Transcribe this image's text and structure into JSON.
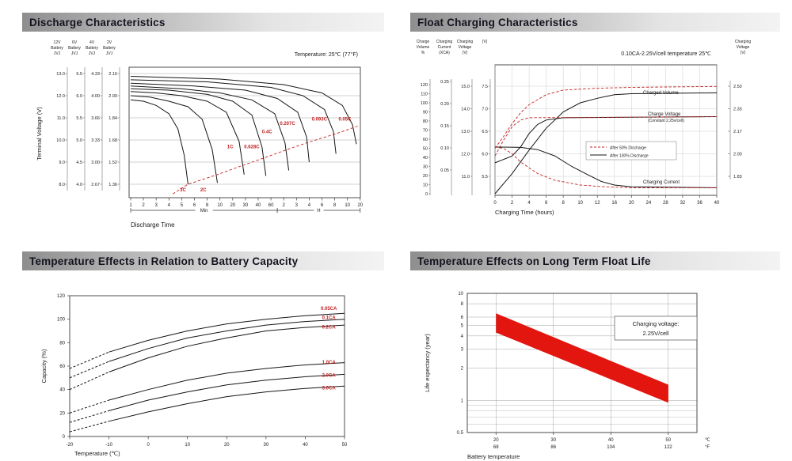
{
  "panels": [
    {
      "id": "discharge",
      "title": "Discharge Characteristics"
    },
    {
      "id": "float_charging",
      "title": "Float Charging Characteristics"
    },
    {
      "id": "temp_capacity",
      "title": "Temperature Effects in Relation to Battery Capacity"
    },
    {
      "id": "float_life",
      "title": "Temperature Effects on Long Term Float Life"
    }
  ],
  "colors": {
    "accent_red": "#c32222",
    "band_red": "#e3150f",
    "curve_black": "#151515",
    "grid": "#9a9a9a"
  },
  "chart_data": [
    {
      "id": "discharge",
      "type": "line",
      "title": "Discharge Characteristics",
      "note": "Temperature: 25℃ (77°F)",
      "xlabel": "Discharge Time",
      "ylabel": "Terminal Voltage (V)",
      "x_tick_labels": [
        "1",
        "2",
        "3",
        "4",
        "5",
        "6",
        "8",
        "10",
        "20",
        "30",
        "40",
        "60",
        "2",
        "3",
        "4",
        "6",
        "8",
        "10",
        "20"
      ],
      "x_unit_spans": [
        {
          "label": "Min",
          "from": 0,
          "to": 11
        },
        {
          "label": "H",
          "from": 12,
          "to": 18
        }
      ],
      "y_axes": [
        {
          "header": "12V Battery JVJ",
          "ticks": [
            "13.0",
            "12.0",
            "11.0",
            "10.0",
            "9.0",
            "8.0"
          ]
        },
        {
          "header": "6V Battery JVJ",
          "ticks": [
            "6.5",
            "6.0",
            "5.5",
            "5.0",
            "4.5",
            "4.0"
          ]
        },
        {
          "header": "4V Battery JVJ",
          "ticks": [
            "4.33",
            "4.00",
            "3.66",
            "3.33",
            "3.00",
            "2.67"
          ]
        },
        {
          "header": "2V Battery JVJ",
          "ticks": [
            "2.16",
            "2.00",
            "1.84",
            "1.68",
            "1.52",
            "1.36"
          ]
        }
      ],
      "y_grid_volts": [
        2.16,
        2.0,
        1.84,
        1.68,
        1.52,
        1.36
      ],
      "series": [
        {
          "name": "3C",
          "label_xy": [
            4.1,
            1.31
          ],
          "points": [
            [
              0,
              1.97
            ],
            [
              1,
              1.96
            ],
            [
              2,
              1.93
            ],
            [
              3,
              1.87
            ],
            [
              3.7,
              1.76
            ],
            [
              4.2,
              1.57
            ],
            [
              4.5,
              1.36
            ]
          ]
        },
        {
          "name": "2C",
          "label_xy": [
            5.7,
            1.31
          ],
          "points": [
            [
              0,
              2.0
            ],
            [
              1.5,
              1.99
            ],
            [
              3,
              1.96
            ],
            [
              4.5,
              1.92
            ],
            [
              5.6,
              1.83
            ],
            [
              6.4,
              1.61
            ],
            [
              6.8,
              1.37
            ]
          ]
        },
        {
          "name": "1C",
          "label_xy": [
            7.8,
            1.62
          ],
          "points": [
            [
              0,
              2.03
            ],
            [
              2,
              2.02
            ],
            [
              4,
              2.0
            ],
            [
              6,
              1.96
            ],
            [
              7.5,
              1.88
            ],
            [
              8.5,
              1.67
            ],
            [
              8.9,
              1.43
            ]
          ]
        },
        {
          "name": "0.628C",
          "label_xy": [
            9.5,
            1.62
          ],
          "points": [
            [
              0,
              2.05
            ],
            [
              3,
              2.04
            ],
            [
              6,
              2.01
            ],
            [
              8,
              1.96
            ],
            [
              9.5,
              1.86
            ],
            [
              10.3,
              1.63
            ],
            [
              10.6,
              1.42
            ]
          ]
        },
        {
          "name": "0.4C",
          "label_xy": [
            10.7,
            1.73
          ],
          "points": [
            [
              0,
              2.07
            ],
            [
              4,
              2.05
            ],
            [
              7,
              2.02
            ],
            [
              9.5,
              1.97
            ],
            [
              11.3,
              1.87
            ],
            [
              12.1,
              1.66
            ],
            [
              12.4,
              1.46
            ]
          ]
        },
        {
          "name": "0.207C",
          "label_xy": [
            12.3,
            1.79
          ],
          "points": [
            [
              0,
              2.09
            ],
            [
              5,
              2.07
            ],
            [
              9,
              2.04
            ],
            [
              11.5,
              1.98
            ],
            [
              13.1,
              1.88
            ],
            [
              13.8,
              1.7
            ],
            [
              14.0,
              1.52
            ]
          ]
        },
        {
          "name": "0.093C",
          "label_xy": [
            14.8,
            1.82
          ],
          "points": [
            [
              0,
              2.115
            ],
            [
              6,
              2.1
            ],
            [
              11,
              2.06
            ],
            [
              13.5,
              2.0
            ],
            [
              15.2,
              1.9
            ],
            [
              15.9,
              1.74
            ],
            [
              16.1,
              1.58
            ]
          ]
        },
        {
          "name": "0.05C",
          "label_xy": [
            16.8,
            1.82
          ],
          "points": [
            [
              0,
              2.14
            ],
            [
              7,
              2.12
            ],
            [
              12,
              2.08
            ],
            [
              15,
              2.02
            ],
            [
              16.6,
              1.93
            ],
            [
              17.4,
              1.79
            ],
            [
              17.7,
              1.65
            ]
          ]
        }
      ],
      "cutoff_curve": [
        [
          3.3,
          1.29
        ],
        [
          4.5,
          1.36
        ],
        [
          6.8,
          1.43
        ],
        [
          8.9,
          1.5
        ],
        [
          10.6,
          1.555
        ],
        [
          12.4,
          1.615
        ],
        [
          14.0,
          1.665
        ],
        [
          16.1,
          1.725
        ],
        [
          17.8,
          1.78
        ]
      ]
    },
    {
      "id": "float_charging",
      "type": "line",
      "title": "Float Charging Characteristics",
      "note": "0.10CA-2.25V/cell  temperature 25℃",
      "xlabel": "Charging Time (hours)",
      "x_ticks": [
        "0",
        "2",
        "4",
        "6",
        "8",
        "10",
        "12",
        "16",
        "20",
        "24",
        "28",
        "32",
        "36",
        "40"
      ],
      "left_axes": [
        {
          "header": "Charge Volume",
          "unit": "%",
          "scale": "volume",
          "ticks": [
            "120",
            "110",
            "100",
            "90",
            "80",
            "70",
            "60",
            "50",
            "40",
            "30",
            "20",
            "10",
            "0"
          ]
        },
        {
          "header": "Charging Current",
          "unit": "(XCA)",
          "scale": "current",
          "ticks": [
            "0.25",
            "0.20",
            "0.15",
            "0.10",
            "0.05"
          ]
        },
        {
          "header": "Charging Voltage",
          "unit": "(V)",
          "scale": "v12",
          "ticks": [
            "15.0",
            "14.0",
            "13.0",
            "12.0",
            "11.0"
          ]
        },
        {
          "header": "",
          "unit": "(V)",
          "scale": "v6",
          "ticks": [
            "7.5",
            "7.0",
            "6.5",
            "6.0",
            "5.5"
          ]
        }
      ],
      "right_axis": {
        "header": "Charging Voltage",
        "unit": "(V)",
        "ticks": [
          "2.50",
          "2.33",
          "2.17",
          "2.00",
          "1.83"
        ]
      },
      "legend": [
        {
          "label": "After  50% Discharge",
          "style": "dashed-red"
        },
        {
          "label": "After 100% Discharge",
          "style": "solid-black"
        }
      ],
      "annotations": [
        {
          "text": "Charged Volume"
        },
        {
          "text": "Charge Voltage"
        },
        {
          "text": "(Constant 2.25v/cell)"
        },
        {
          "text": "Charging Current"
        }
      ],
      "series": [
        {
          "name": "Charged Volume (after 100% discharge)",
          "scale": "volume",
          "style": "solid",
          "points": [
            [
              0,
              0
            ],
            [
              2,
              22
            ],
            [
              4,
              48
            ],
            [
              6,
              72
            ],
            [
              8,
              90
            ],
            [
              10,
              100
            ],
            [
              12,
              105
            ],
            [
              16,
              109
            ],
            [
              20,
              110
            ],
            [
              40,
              111
            ]
          ]
        },
        {
          "name": "Charged Volume (after 50% discharge)",
          "scale": "volume",
          "style": "dashed",
          "points": [
            [
              0,
              50
            ],
            [
              1,
              63
            ],
            [
              2,
              77
            ],
            [
              3,
              89
            ],
            [
              4,
              98
            ],
            [
              6,
              109
            ],
            [
              8,
              114
            ],
            [
              12,
              116
            ],
            [
              20,
              117
            ],
            [
              40,
              118
            ]
          ]
        },
        {
          "name": "Charge Voltage (after 100% discharge)",
          "scale": "v12",
          "style": "solid",
          "points": [
            [
              0,
              11.6
            ],
            [
              2,
              11.9
            ],
            [
              3,
              12.3
            ],
            [
              4,
              12.9
            ],
            [
              5,
              13.3
            ],
            [
              6,
              13.5
            ],
            [
              8,
              13.6
            ],
            [
              40,
              13.65
            ]
          ]
        },
        {
          "name": "Charge Voltage (after 50% discharge)",
          "scale": "v12",
          "style": "dashed",
          "points": [
            [
              0,
              11.9
            ],
            [
              1,
              12.6
            ],
            [
              2,
              13.2
            ],
            [
              3,
              13.5
            ],
            [
              4,
              13.6
            ],
            [
              40,
              13.65
            ]
          ]
        },
        {
          "name": "Charging Current (after 100% discharge)",
          "scale": "current",
          "style": "solid",
          "points": [
            [
              0,
              0.102
            ],
            [
              3,
              0.101
            ],
            [
              5,
              0.096
            ],
            [
              7,
              0.082
            ],
            [
              9,
              0.058
            ],
            [
              11,
              0.038
            ],
            [
              13,
              0.024
            ],
            [
              16,
              0.016
            ],
            [
              20,
              0.012
            ],
            [
              40,
              0.01
            ]
          ]
        },
        {
          "name": "Charging Current (after 50% discharge)",
          "scale": "current",
          "style": "dashed",
          "points": [
            [
              0,
              0.102
            ],
            [
              1,
              0.099
            ],
            [
              2,
              0.087
            ],
            [
              3,
              0.068
            ],
            [
              5,
              0.042
            ],
            [
              7,
              0.027
            ],
            [
              10,
              0.016
            ],
            [
              14,
              0.012
            ],
            [
              20,
              0.01
            ],
            [
              40,
              0.01
            ]
          ]
        }
      ]
    },
    {
      "id": "temp_capacity",
      "type": "line",
      "title": "Temperature Effects in Relation to Battery Capacity",
      "xlabel": "Temperature (℃)",
      "ylabel": "Capacity (%)",
      "x_ticks": [
        -20,
        -10,
        0,
        10,
        20,
        30,
        40,
        50
      ],
      "y_ticks": [
        0,
        20,
        40,
        60,
        80,
        100,
        120
      ],
      "series": [
        {
          "name": "0.05CA",
          "label_y": 108,
          "points": [
            [
              -20,
              58
            ],
            [
              -10,
              72
            ],
            [
              0,
              82
            ],
            [
              10,
              90
            ],
            [
              20,
              96
            ],
            [
              30,
              100
            ],
            [
              40,
              103
            ],
            [
              50,
              105
            ]
          ]
        },
        {
          "name": "0.1CA",
          "label_y": 100,
          "points": [
            [
              -20,
              50
            ],
            [
              -10,
              64
            ],
            [
              0,
              75
            ],
            [
              10,
              84
            ],
            [
              20,
              90
            ],
            [
              30,
              95
            ],
            [
              40,
              98
            ],
            [
              50,
              100
            ]
          ]
        },
        {
          "name": "0.2CA",
          "label_y": 92,
          "points": [
            [
              -20,
              40
            ],
            [
              -10,
              55
            ],
            [
              0,
              67
            ],
            [
              10,
              77
            ],
            [
              20,
              84
            ],
            [
              30,
              90
            ],
            [
              40,
              93
            ],
            [
              50,
              95
            ]
          ]
        },
        {
          "name": "1.0CA",
          "label_y": 62,
          "points": [
            [
              -20,
              20
            ],
            [
              -10,
              31
            ],
            [
              0,
              40
            ],
            [
              10,
              48
            ],
            [
              20,
              54
            ],
            [
              30,
              58
            ],
            [
              40,
              61
            ],
            [
              50,
              63
            ]
          ]
        },
        {
          "name": "2.0CA",
          "label_y": 51,
          "points": [
            [
              -20,
              12
            ],
            [
              -10,
              22
            ],
            [
              0,
              31
            ],
            [
              10,
              38
            ],
            [
              20,
              44
            ],
            [
              30,
              48
            ],
            [
              40,
              51
            ],
            [
              50,
              53
            ]
          ]
        },
        {
          "name": "3.0CA",
          "label_y": 40,
          "points": [
            [
              -20,
              4
            ],
            [
              -10,
              13
            ],
            [
              0,
              21
            ],
            [
              10,
              28
            ],
            [
              20,
              34
            ],
            [
              30,
              38
            ],
            [
              40,
              41
            ],
            [
              50,
              43
            ]
          ]
        }
      ]
    },
    {
      "id": "float_life",
      "type": "band",
      "title": "Temperature Effects on Long Term Float Life",
      "xlabel": "Battery temperature",
      "ylabel": "Life expectancy (year)",
      "annotation": [
        "Charging voltage:",
        "2.25V/cell"
      ],
      "y_ticks": [
        10,
        8,
        6,
        5,
        4,
        3,
        2,
        1,
        0.5
      ],
      "y_minor": [
        0.9,
        0.8,
        0.7,
        0.6
      ],
      "x_ticks": [
        {
          "c": "20",
          "f": "68"
        },
        {
          "c": "30",
          "f": "86"
        },
        {
          "c": "40",
          "f": "104"
        },
        {
          "c": "50",
          "f": "122"
        }
      ],
      "x_units": {
        "c": "℃",
        "f": "°F"
      },
      "band": {
        "upper": [
          [
            20,
            6.5
          ],
          [
            50,
            1.4
          ]
        ],
        "lower": [
          [
            20,
            4.3
          ],
          [
            50,
            0.95
          ]
        ]
      }
    }
  ]
}
